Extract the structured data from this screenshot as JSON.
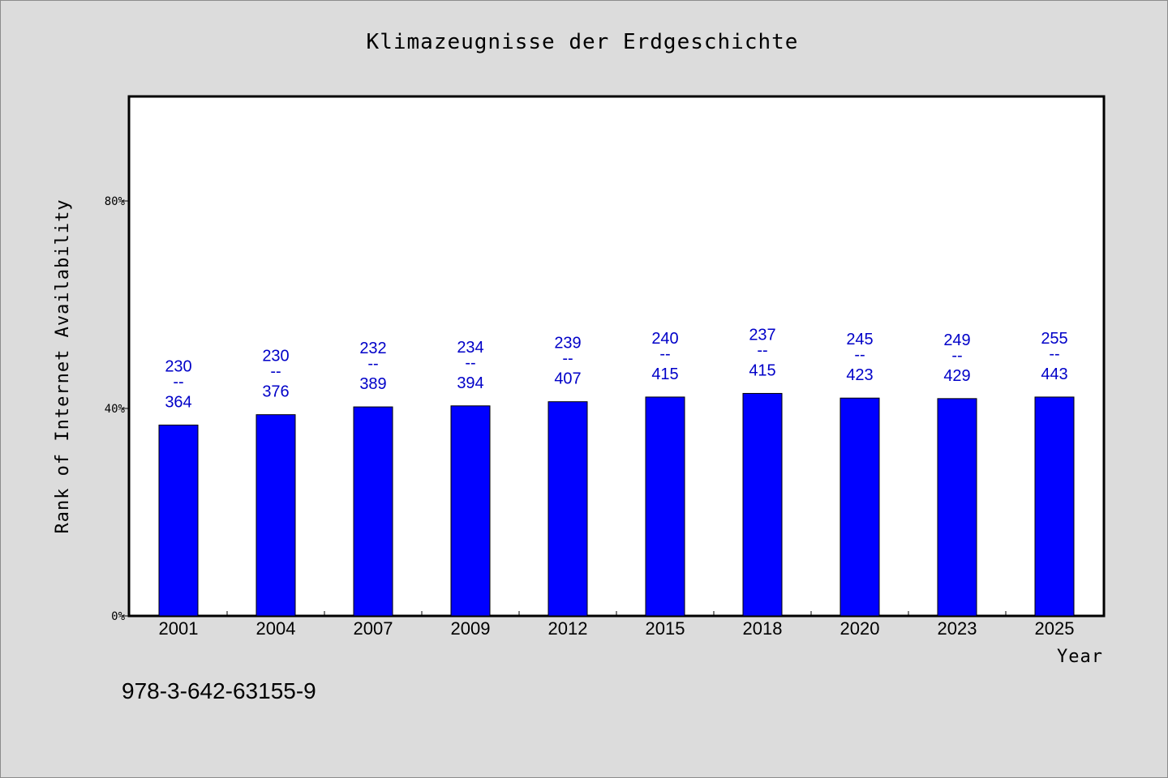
{
  "page": {
    "isbn": "978-3-642-63155-9"
  },
  "colors": {
    "bar": "#0000ff",
    "label": "#0000c8",
    "background": "#dcdcdc",
    "plot_background": "#ffffff"
  },
  "chart_data": {
    "type": "bar",
    "title": "Klimazeugnisse der Erdgeschichte",
    "xlabel": "Year",
    "ylabel": "Rank of Internet Availability",
    "categories": [
      "2001",
      "2004",
      "2007",
      "2009",
      "2012",
      "2015",
      "2018",
      "2020",
      "2023",
      "2025"
    ],
    "values": [
      36.8,
      38.8,
      40.3,
      40.5,
      41.3,
      42.2,
      42.9,
      42.0,
      41.9,
      42.2
    ],
    "labels_top": [
      "230",
      "230",
      "232",
      "234",
      "239",
      "240",
      "237",
      "245",
      "249",
      "255"
    ],
    "labels_sep": "--",
    "labels_bottom": [
      "364",
      "376",
      "389",
      "394",
      "407",
      "415",
      "415",
      "423",
      "429",
      "443"
    ],
    "yticks": [
      0,
      40,
      80
    ],
    "ytick_labels": [
      "0%",
      "40%",
      "80%"
    ],
    "ylim": [
      0,
      100
    ],
    "grid": false,
    "legend": "none"
  }
}
